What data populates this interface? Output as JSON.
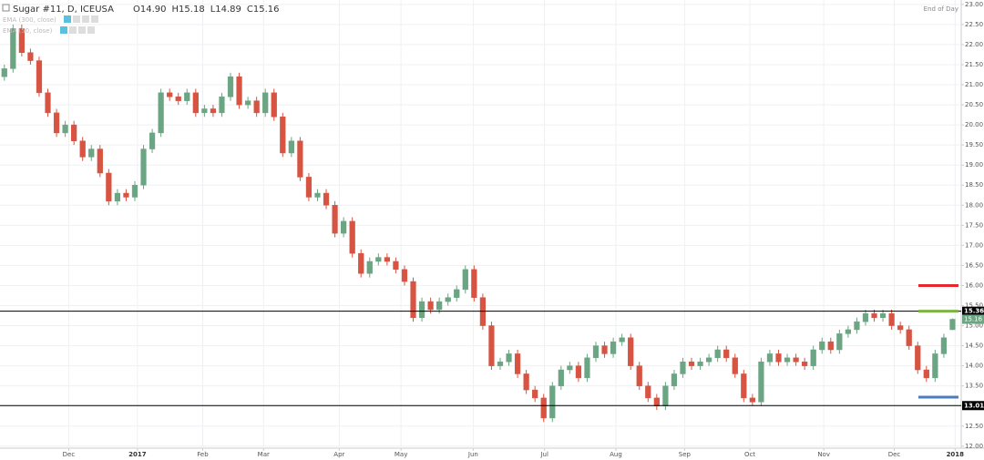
{
  "chart_data": {
    "type": "candlestick",
    "header": {
      "symbol": "Sugar #11, D, ICEUSA",
      "fields": [
        {
          "key": "O",
          "value": "14.90"
        },
        {
          "key": "H",
          "value": "15.18"
        },
        {
          "key": "L",
          "value": "14.89"
        },
        {
          "key": "C",
          "value": "15.16"
        }
      ]
    },
    "indicators": [
      "EMA (300, close)",
      "EMA (50, close)"
    ],
    "mode": "End of Day",
    "up_color": "#6ba583",
    "down_color": "#d75442",
    "open": [
      21.2,
      21.4,
      22.4,
      21.8,
      21.6,
      20.8,
      20.3,
      19.8,
      20.0,
      19.6,
      19.2,
      19.4,
      18.8,
      18.1,
      18.3,
      18.2,
      18.5,
      19.4,
      19.8,
      20.8,
      20.7,
      20.6,
      20.8,
      20.3,
      20.4,
      20.3,
      20.7,
      21.2,
      20.5,
      20.6,
      20.3,
      20.8,
      20.2,
      19.3,
      19.6,
      18.7,
      18.2,
      18.3,
      18.0,
      17.3,
      17.6,
      16.8,
      16.3,
      16.6,
      16.7,
      16.6,
      16.4,
      16.1,
      15.2,
      15.6,
      15.4,
      15.6,
      15.7,
      15.9,
      16.4,
      15.7,
      15.0,
      14.0,
      14.1,
      14.3,
      13.8,
      13.4,
      13.2,
      12.7,
      13.5,
      13.9,
      14.0,
      13.7,
      14.2,
      14.5,
      14.3,
      14.6,
      14.7,
      14.0,
      13.5,
      13.2,
      13.0,
      13.5,
      13.8,
      14.1,
      14.0,
      14.1,
      14.2,
      14.4,
      14.2,
      13.8,
      13.2,
      13.1,
      14.1,
      14.3,
      14.1,
      14.2,
      14.1,
      14.0,
      14.4,
      14.6,
      14.4,
      14.8,
      14.9,
      15.1,
      15.3,
      15.2,
      15.3,
      15.0,
      14.9,
      14.5,
      13.9,
      13.7,
      14.3,
      14.9
    ],
    "high": [
      21.5,
      22.5,
      22.5,
      21.9,
      21.7,
      20.9,
      20.4,
      20.1,
      20.1,
      19.7,
      19.5,
      19.5,
      18.9,
      18.4,
      18.4,
      18.6,
      19.5,
      19.9,
      20.9,
      20.9,
      20.8,
      20.9,
      20.9,
      20.5,
      20.5,
      20.8,
      21.3,
      21.3,
      20.7,
      20.7,
      20.9,
      20.9,
      20.3,
      19.7,
      19.7,
      18.8,
      18.4,
      18.4,
      18.1,
      17.7,
      17.7,
      16.9,
      16.7,
      16.8,
      16.8,
      16.7,
      16.5,
      16.2,
      15.7,
      15.7,
      15.7,
      15.8,
      16.0,
      16.5,
      16.5,
      15.8,
      15.1,
      14.2,
      14.4,
      14.4,
      13.9,
      13.5,
      13.3,
      13.6,
      14.0,
      14.1,
      14.1,
      14.3,
      14.6,
      14.6,
      14.7,
      14.8,
      14.8,
      14.1,
      13.6,
      13.3,
      13.6,
      13.9,
      14.2,
      14.2,
      14.2,
      14.3,
      14.5,
      14.5,
      14.3,
      13.9,
      13.3,
      14.2,
      14.4,
      14.4,
      14.3,
      14.3,
      14.2,
      14.5,
      14.7,
      14.7,
      14.9,
      15.0,
      15.2,
      15.4,
      15.4,
      15.4,
      15.4,
      15.1,
      15.0,
      14.6,
      14.0,
      14.4,
      14.8,
      15.18
    ],
    "low": [
      21.1,
      21.3,
      21.7,
      21.5,
      20.7,
      20.2,
      19.7,
      19.7,
      19.5,
      19.1,
      19.1,
      18.7,
      18.0,
      18.0,
      18.1,
      18.1,
      18.4,
      19.3,
      19.7,
      20.6,
      20.5,
      20.5,
      20.2,
      20.2,
      20.2,
      20.2,
      20.6,
      20.4,
      20.4,
      20.2,
      20.2,
      20.1,
      19.2,
      19.2,
      18.6,
      18.1,
      18.1,
      17.9,
      17.2,
      17.2,
      16.7,
      16.2,
      16.2,
      16.5,
      16.5,
      16.3,
      16.0,
      15.1,
      15.1,
      15.3,
      15.3,
      15.5,
      15.6,
      15.8,
      15.6,
      14.9,
      13.9,
      13.9,
      14.0,
      13.7,
      13.3,
      13.1,
      12.6,
      12.6,
      13.4,
      13.8,
      13.6,
      13.6,
      14.1,
      14.2,
      14.2,
      14.5,
      13.9,
      13.4,
      13.1,
      12.9,
      12.9,
      13.4,
      13.7,
      13.9,
      13.9,
      14.0,
      14.1,
      14.1,
      13.7,
      13.1,
      13.0,
      13.0,
      14.0,
      14.0,
      14.0,
      14.0,
      13.9,
      13.9,
      14.3,
      14.3,
      14.3,
      14.7,
      14.8,
      15.0,
      15.1,
      15.1,
      14.9,
      14.8,
      14.4,
      13.8,
      13.6,
      13.6,
      14.2,
      14.89
    ],
    "close": [
      21.4,
      22.4,
      21.8,
      21.6,
      20.8,
      20.3,
      19.8,
      20.0,
      19.6,
      19.2,
      19.4,
      18.8,
      18.1,
      18.3,
      18.2,
      18.5,
      19.4,
      19.8,
      20.8,
      20.7,
      20.6,
      20.8,
      20.3,
      20.4,
      20.3,
      20.7,
      21.2,
      20.5,
      20.6,
      20.3,
      20.8,
      20.2,
      19.3,
      19.6,
      18.7,
      18.2,
      18.3,
      18.0,
      17.3,
      17.6,
      16.8,
      16.3,
      16.6,
      16.7,
      16.6,
      16.4,
      16.1,
      15.2,
      15.6,
      15.4,
      15.6,
      15.7,
      15.9,
      16.4,
      15.7,
      15.0,
      14.0,
      14.1,
      14.3,
      13.8,
      13.4,
      13.2,
      12.7,
      13.5,
      13.9,
      14.0,
      13.7,
      14.2,
      14.5,
      14.3,
      14.6,
      14.7,
      14.0,
      13.5,
      13.2,
      13.0,
      13.5,
      13.8,
      14.1,
      14.0,
      14.1,
      14.2,
      14.4,
      14.2,
      13.8,
      13.2,
      13.1,
      14.1,
      14.3,
      14.1,
      14.2,
      14.1,
      14.0,
      14.4,
      14.6,
      14.4,
      14.8,
      14.9,
      15.1,
      15.3,
      15.2,
      15.3,
      15.0,
      14.9,
      14.5,
      13.9,
      13.7,
      14.3,
      14.7,
      15.16
    ],
    "last_price_label": "15.16",
    "xlim": [
      -0.5,
      110
    ],
    "xticks": [
      {
        "value": 7.4,
        "label": "Dec"
      },
      {
        "value": 15.3,
        "label": "2017"
      },
      {
        "value": 22.8,
        "label": "Feb"
      },
      {
        "value": 29.8,
        "label": "Mar"
      },
      {
        "value": 38.5,
        "label": "Apr"
      },
      {
        "value": 45.6,
        "label": "May"
      },
      {
        "value": 53.9,
        "label": "Jun"
      },
      {
        "value": 62.1,
        "label": "Jul"
      },
      {
        "value": 70.3,
        "label": "Aug"
      },
      {
        "value": 78.2,
        "label": "Sep"
      },
      {
        "value": 85.7,
        "label": "Oct"
      },
      {
        "value": 94.2,
        "label": "Nov"
      },
      {
        "value": 102.3,
        "label": "Dec"
      },
      {
        "value": 109.3,
        "label": "2018"
      }
    ],
    "ylim": [
      11.95,
      23.11
    ],
    "yticks": [
      {
        "value": 12,
        "label": "12.00"
      },
      {
        "value": 12.5,
        "label": "12.50"
      },
      {
        "value": 13,
        "label": "13.00"
      },
      {
        "value": 13.5,
        "label": "13.50"
      },
      {
        "value": 14,
        "label": "14.00"
      },
      {
        "value": 14.5,
        "label": "14.50"
      },
      {
        "value": 15,
        "label": "15.00"
      },
      {
        "value": 15.5,
        "label": "15.50"
      },
      {
        "value": 16,
        "label": "16.00"
      },
      {
        "value": 16.5,
        "label": "16.50"
      },
      {
        "value": 17,
        "label": "17.00"
      },
      {
        "value": 17.5,
        "label": "17.50"
      },
      {
        "value": 18,
        "label": "18.00"
      },
      {
        "value": 18.5,
        "label": "18.50"
      },
      {
        "value": 19,
        "label": "19.00"
      },
      {
        "value": 19.5,
        "label": "19.50"
      },
      {
        "value": 20,
        "label": "20.00"
      },
      {
        "value": 20.5,
        "label": "20.50"
      },
      {
        "value": 21,
        "label": "21.00"
      },
      {
        "value": 21.5,
        "label": "21.50"
      },
      {
        "value": 22,
        "label": "22.00"
      },
      {
        "value": 22.5,
        "label": "22.50"
      },
      {
        "value": 23,
        "label": "23.00"
      }
    ],
    "grid": true,
    "hlines": [
      {
        "value": 15.36,
        "label": "15.36",
        "color": "#000000"
      },
      {
        "value": 13.01,
        "label": "13.01",
        "color": "#000000"
      }
    ],
    "markers": [
      {
        "value": 16.0,
        "color": "#e8262b"
      },
      {
        "value": 15.36,
        "color": "#7cb342"
      },
      {
        "value": 13.22,
        "color": "#4a7ebb"
      }
    ]
  }
}
